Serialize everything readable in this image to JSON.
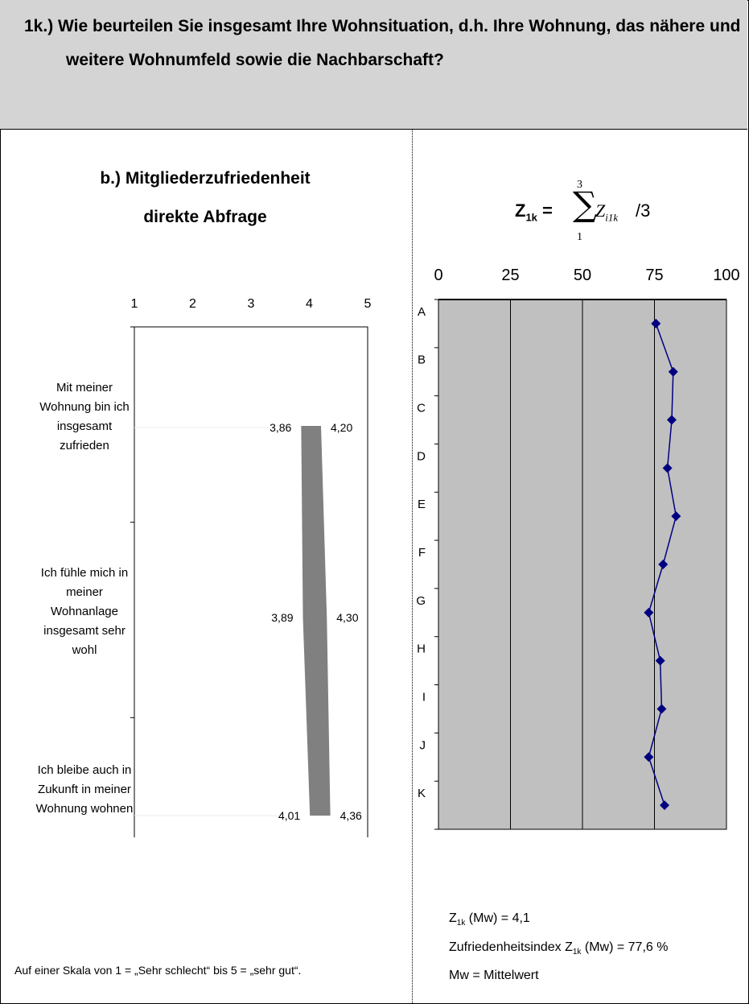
{
  "header": {
    "title": "1k.) Wie beurteilen Sie insgesamt Ihre Wohnsituation, d.h. Ihre Wohnung, das nähere und weitere Wohnumfeld sowie die Nachbarschaft?"
  },
  "left": {
    "subtitle_line1": "b.) Mitgliederzufriedenheit",
    "subtitle_line2": "direkte Abfrage",
    "footnote": "Auf einer Skala von 1 = „Sehr schlecht“ bis 5 = „sehr gut“."
  },
  "formula": {
    "lhs": "Z",
    "lhs_sub": "1k",
    "eq": "=",
    "sigma": "∑",
    "upper": "3",
    "lower": "1",
    "term": "Z",
    "term_sub": "i1k",
    "divisor": "/3"
  },
  "stats": {
    "z_prefix": "Z",
    "z_sub": "1k",
    "z_rest": " (Mw) = 4,1",
    "index_prefix": "Zufriedenheitsindex Z",
    "index_sub": "1k",
    "index_rest": " (Mw) = 77,6 %",
    "mw": "Mw = Mittelwert"
  },
  "chart_data": [
    {
      "type": "bar",
      "orientation": "horizontal-range",
      "xlim": [
        1,
        5
      ],
      "xticks": [
        "1",
        "2",
        "3",
        "4",
        "5"
      ],
      "categories": [
        "Mit meiner Wohnung bin ich insgesamt zufrieden",
        "Ich fühle mich in meiner Wohnanlage insgesamt sehr wohl",
        "Ich bleibe auch in Zukunft in meiner Wohnung wohnen"
      ],
      "low": [
        3.86,
        3.89,
        4.01
      ],
      "high": [
        4.2,
        4.3,
        4.36
      ],
      "low_labels": [
        "3,86",
        "3,89",
        "4,01"
      ],
      "high_labels": [
        "4,20",
        "4,30",
        "4,36"
      ],
      "colors": {
        "band": "#808080",
        "plot_bg": "#ffffff"
      }
    },
    {
      "type": "line",
      "xlim": [
        0,
        100
      ],
      "xticks": [
        "0",
        "25",
        "50",
        "75",
        "100"
      ],
      "categories": [
        "A",
        "B",
        "C",
        "D",
        "E",
        "F",
        "G",
        "H",
        "I",
        "J",
        "K"
      ],
      "values": [
        75.5,
        81.5,
        81,
        79.5,
        82.5,
        78,
        73,
        77,
        77.5,
        73,
        78.5
      ],
      "grid": true,
      "colors": {
        "line": "#000080",
        "plot_bg": "#c0c0c0"
      }
    }
  ]
}
